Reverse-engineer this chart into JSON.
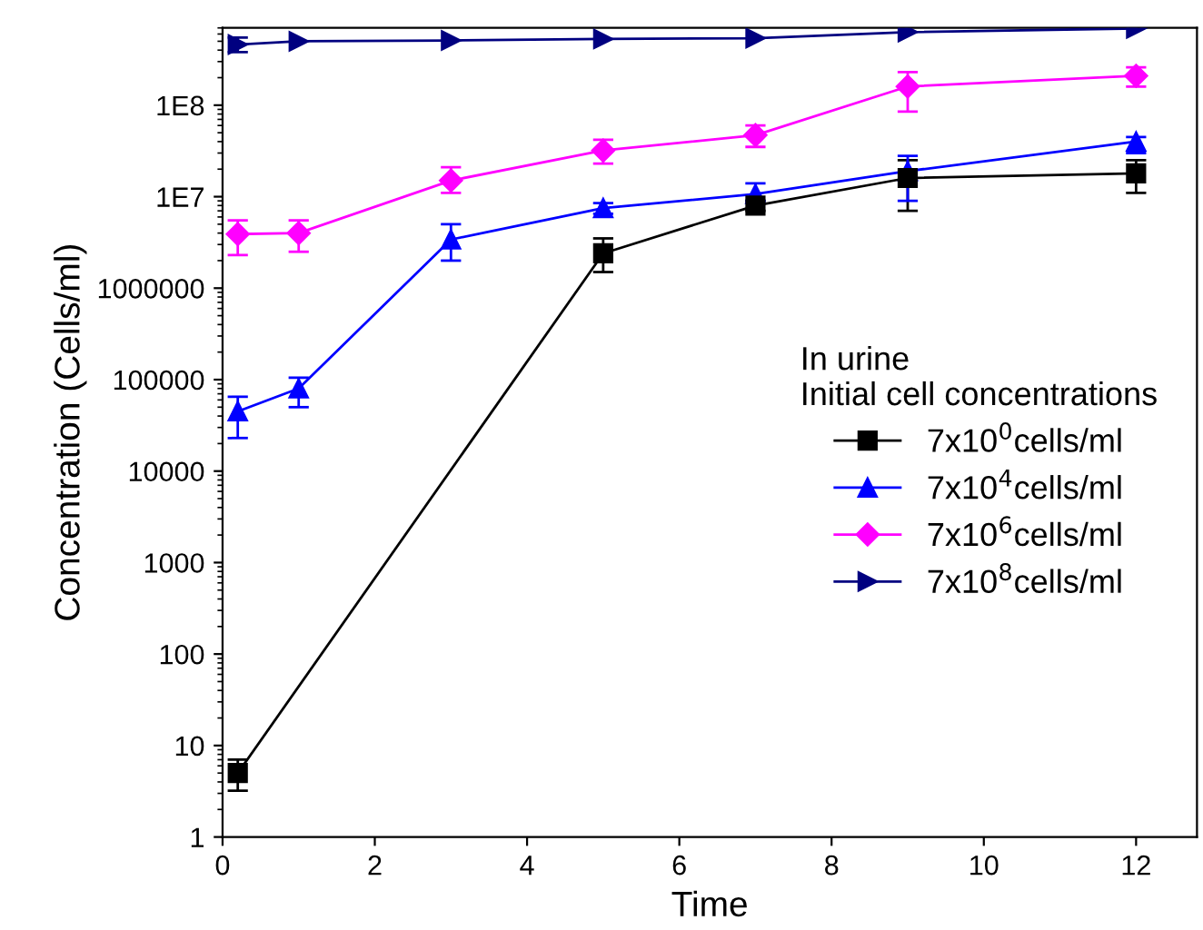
{
  "chart_data": {
    "type": "line",
    "xlabel": "Time",
    "ylabel": "Concentration (Cells/ml)",
    "legend_title": "In urine\nInitial cell concentrations",
    "log": "y",
    "legend": "right",
    "grid": false,
    "xlim": [
      0,
      12.8
    ],
    "xticks": [
      0,
      2,
      4,
      6,
      8,
      10,
      12
    ],
    "ylim": [
      1,
      700000000.0
    ],
    "yticks": [
      1,
      10,
      100,
      1000,
      10000,
      100000,
      1000000,
      {
        "value": 10000000.0,
        "label": "1E7"
      },
      {
        "value": 100000000.0,
        "label": "1E8"
      }
    ],
    "x": [
      0.2,
      1,
      3,
      5,
      7,
      9,
      12
    ],
    "series": [
      {
        "name": "7x10$^{0}$cells/ml",
        "color": "#000000",
        "marker": "square",
        "values": [
          5,
          null,
          null,
          2400000,
          8000000,
          16000000,
          18000000
        ],
        "errors": [
          [
            3.2,
            7
          ],
          null,
          null,
          [
            1500000,
            3500000
          ],
          [
            7000000,
            9000000
          ],
          [
            7000000,
            25000000
          ],
          [
            11000000,
            25000000
          ]
        ]
      },
      {
        "name": "7x10$^{4}$cells/ml",
        "color": "#0000ff",
        "marker": "triangle",
        "values": [
          45000,
          80000,
          3400000,
          7500000,
          10700000,
          19000000,
          40000000
        ],
        "errors": [
          [
            23000,
            65000
          ],
          [
            50000,
            105000
          ],
          [
            2000000,
            5000000
          ],
          [
            6500000,
            8500000
          ],
          [
            9000000,
            14000000
          ],
          [
            9000000,
            28000000
          ],
          [
            30000000,
            45000000
          ]
        ]
      },
      {
        "name": "7x10$^{6}$cells/ml",
        "color": "#ff00ff",
        "marker": "diamond",
        "values": [
          3900000,
          4000000,
          15000000,
          32000000,
          47000000,
          160000000,
          210000000
        ],
        "errors": [
          [
            2300000,
            5500000
          ],
          [
            2500000,
            5500000
          ],
          [
            11000000,
            21000000
          ],
          [
            23000000,
            42000000
          ],
          [
            35000000,
            60000000
          ],
          [
            85000000,
            230000000
          ],
          [
            160000000,
            260000000
          ]
        ]
      },
      {
        "name": "7x10$^{8}$cells/ml",
        "color": "#000080",
        "marker": "triangle_right",
        "values": [
          460000000,
          500000000,
          510000000,
          530000000,
          540000000,
          630000000,
          690000000
        ],
        "errors": [
          [
            380000000,
            550000000
          ],
          null,
          null,
          null,
          null,
          null,
          null
        ]
      }
    ]
  }
}
